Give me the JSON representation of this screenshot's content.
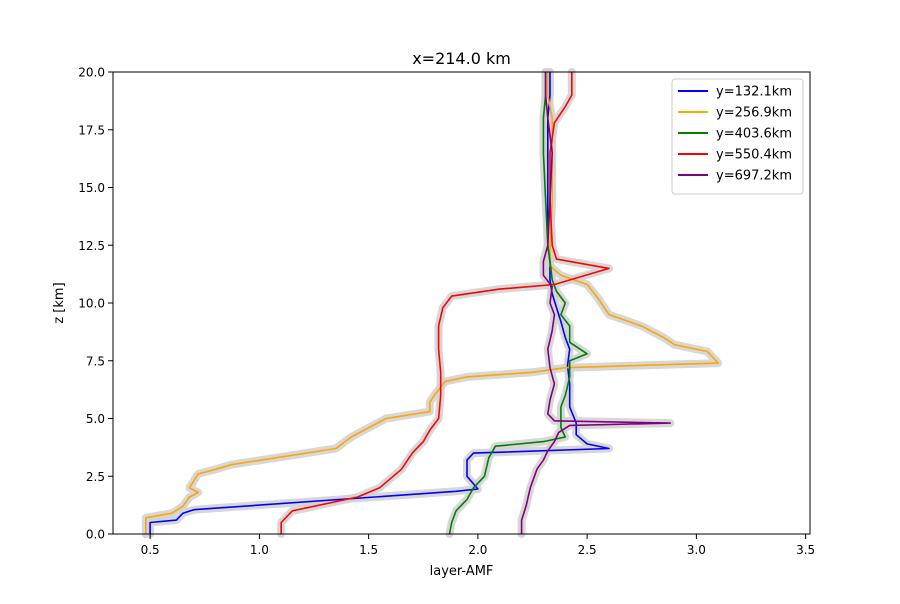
{
  "chart_data": {
    "type": "line",
    "title": "x=214.0 km",
    "xlabel": "layer-AMF",
    "ylabel": "z [km]",
    "xlim": [
      0.33,
      3.52
    ],
    "ylim": [
      0,
      20
    ],
    "xticks": [
      0.5,
      1.0,
      1.5,
      2.0,
      2.5,
      3.0,
      3.5
    ],
    "xtick_labels": [
      "0.5",
      "1.0",
      "1.5",
      "2.0",
      "2.5",
      "3.0",
      "3.5"
    ],
    "yticks": [
      0,
      2.5,
      5,
      7.5,
      10,
      12.5,
      15,
      17.5,
      20
    ],
    "ytick_labels": [
      "0.0",
      "2.5",
      "5.0",
      "7.5",
      "10.0",
      "12.5",
      "15.0",
      "17.5",
      "20.0"
    ],
    "grid": false,
    "legend_position": "top-right",
    "band_color": "#d3d3d3",
    "series": [
      {
        "name": "y=132.1km",
        "color": "#0000ff",
        "points": [
          [
            0.5,
            0
          ],
          [
            0.5,
            0.5
          ],
          [
            0.62,
            0.6
          ],
          [
            0.65,
            0.9
          ],
          [
            0.7,
            1.05
          ],
          [
            1.9,
            1.85
          ],
          [
            2.0,
            1.95
          ],
          [
            1.95,
            2.5
          ],
          [
            1.95,
            3.2
          ],
          [
            1.98,
            3.5
          ],
          [
            2.6,
            3.7
          ],
          [
            2.5,
            3.9
          ],
          [
            2.45,
            4.3
          ],
          [
            2.45,
            4.8
          ],
          [
            2.42,
            5.5
          ],
          [
            2.42,
            6.5
          ],
          [
            2.41,
            7.3
          ],
          [
            2.42,
            8.0
          ],
          [
            2.4,
            8.5
          ],
          [
            2.38,
            9.2
          ],
          [
            2.36,
            9.8
          ],
          [
            2.34,
            10.4
          ],
          [
            2.33,
            11.0
          ],
          [
            2.33,
            11.8
          ],
          [
            2.32,
            12.5
          ],
          [
            2.32,
            14.5
          ],
          [
            2.32,
            16.5
          ],
          [
            2.32,
            18.0
          ],
          [
            2.33,
            19.0
          ],
          [
            2.33,
            20.0
          ]
        ]
      },
      {
        "name": "y=256.9km",
        "color": "#ffa500",
        "points": [
          [
            0.48,
            0
          ],
          [
            0.48,
            0.7
          ],
          [
            0.6,
            0.9
          ],
          [
            0.65,
            1.2
          ],
          [
            0.68,
            1.6
          ],
          [
            0.72,
            1.8
          ],
          [
            0.68,
            2.0
          ],
          [
            0.72,
            2.6
          ],
          [
            0.8,
            2.8
          ],
          [
            0.87,
            3.0
          ],
          [
            1.35,
            3.7
          ],
          [
            1.42,
            4.2
          ],
          [
            1.58,
            5.0
          ],
          [
            1.78,
            5.3
          ],
          [
            1.78,
            5.7
          ],
          [
            1.8,
            6.0
          ],
          [
            1.85,
            6.6
          ],
          [
            1.95,
            6.8
          ],
          [
            2.25,
            7.0
          ],
          [
            2.4,
            7.2
          ],
          [
            3.1,
            7.4
          ],
          [
            3.05,
            7.9
          ],
          [
            2.9,
            8.2
          ],
          [
            2.85,
            8.5
          ],
          [
            2.75,
            9.0
          ],
          [
            2.6,
            9.5
          ],
          [
            2.55,
            10.2
          ],
          [
            2.5,
            10.8
          ],
          [
            2.38,
            11.2
          ],
          [
            2.33,
            11.6
          ],
          [
            2.33,
            12.5
          ],
          [
            2.34,
            14.5
          ],
          [
            2.34,
            16.5
          ],
          [
            2.34,
            18.0
          ],
          [
            2.32,
            19.0
          ],
          [
            2.32,
            20.0
          ]
        ]
      },
      {
        "name": "y=403.6km",
        "color": "#008000",
        "points": [
          [
            1.87,
            0
          ],
          [
            1.88,
            0.5
          ],
          [
            1.9,
            1.0
          ],
          [
            1.95,
            1.5
          ],
          [
            1.98,
            2.0
          ],
          [
            2.03,
            2.5
          ],
          [
            2.05,
            3.3
          ],
          [
            2.08,
            3.8
          ],
          [
            2.3,
            4.0
          ],
          [
            2.4,
            4.2
          ],
          [
            2.38,
            4.6
          ],
          [
            2.38,
            5.5
          ],
          [
            2.4,
            6.0
          ],
          [
            2.42,
            6.8
          ],
          [
            2.42,
            7.5
          ],
          [
            2.5,
            7.8
          ],
          [
            2.42,
            8.3
          ],
          [
            2.42,
            9.0
          ],
          [
            2.38,
            9.5
          ],
          [
            2.4,
            10.0
          ],
          [
            2.36,
            10.5
          ],
          [
            2.34,
            11.0
          ],
          [
            2.33,
            11.8
          ],
          [
            2.32,
            12.5
          ],
          [
            2.31,
            14.5
          ],
          [
            2.3,
            16.5
          ],
          [
            2.3,
            18.0
          ],
          [
            2.31,
            19.0
          ],
          [
            2.31,
            20.0
          ]
        ]
      },
      {
        "name": "y=550.4km",
        "color": "#ff0000",
        "points": [
          [
            1.1,
            0
          ],
          [
            1.1,
            0.5
          ],
          [
            1.15,
            1.0
          ],
          [
            1.45,
            1.6
          ],
          [
            1.55,
            2.0
          ],
          [
            1.65,
            2.8
          ],
          [
            1.7,
            3.5
          ],
          [
            1.75,
            4.0
          ],
          [
            1.78,
            4.5
          ],
          [
            1.82,
            5.0
          ],
          [
            1.83,
            6.0
          ],
          [
            1.83,
            7.0
          ],
          [
            1.82,
            8.0
          ],
          [
            1.82,
            9.0
          ],
          [
            1.84,
            9.8
          ],
          [
            1.88,
            10.3
          ],
          [
            2.1,
            10.6
          ],
          [
            2.35,
            10.8
          ],
          [
            2.6,
            11.5
          ],
          [
            2.36,
            11.9
          ],
          [
            2.34,
            12.5
          ],
          [
            2.33,
            14.5
          ],
          [
            2.33,
            16.5
          ],
          [
            2.35,
            17.8
          ],
          [
            2.4,
            18.5
          ],
          [
            2.43,
            19.0
          ],
          [
            2.43,
            20.0
          ]
        ]
      },
      {
        "name": "y=697.2km",
        "color": "#800080",
        "points": [
          [
            2.2,
            0
          ],
          [
            2.2,
            0.6
          ],
          [
            2.22,
            1.2
          ],
          [
            2.24,
            2.0
          ],
          [
            2.27,
            2.8
          ],
          [
            2.3,
            3.2
          ],
          [
            2.32,
            3.6
          ],
          [
            2.35,
            4.0
          ],
          [
            2.37,
            4.4
          ],
          [
            2.42,
            4.7
          ],
          [
            2.88,
            4.8
          ],
          [
            2.35,
            4.9
          ],
          [
            2.32,
            5.2
          ],
          [
            2.33,
            5.8
          ],
          [
            2.35,
            6.5
          ],
          [
            2.33,
            7.2
          ],
          [
            2.32,
            8.0
          ],
          [
            2.34,
            8.8
          ],
          [
            2.35,
            9.5
          ],
          [
            2.33,
            10.0
          ],
          [
            2.34,
            10.7
          ],
          [
            2.3,
            11.2
          ],
          [
            2.3,
            11.8
          ],
          [
            2.32,
            12.5
          ],
          [
            2.33,
            14.5
          ],
          [
            2.34,
            16.5
          ],
          [
            2.32,
            18.0
          ],
          [
            2.31,
            19.0
          ],
          [
            2.31,
            20.0
          ]
        ]
      }
    ]
  }
}
